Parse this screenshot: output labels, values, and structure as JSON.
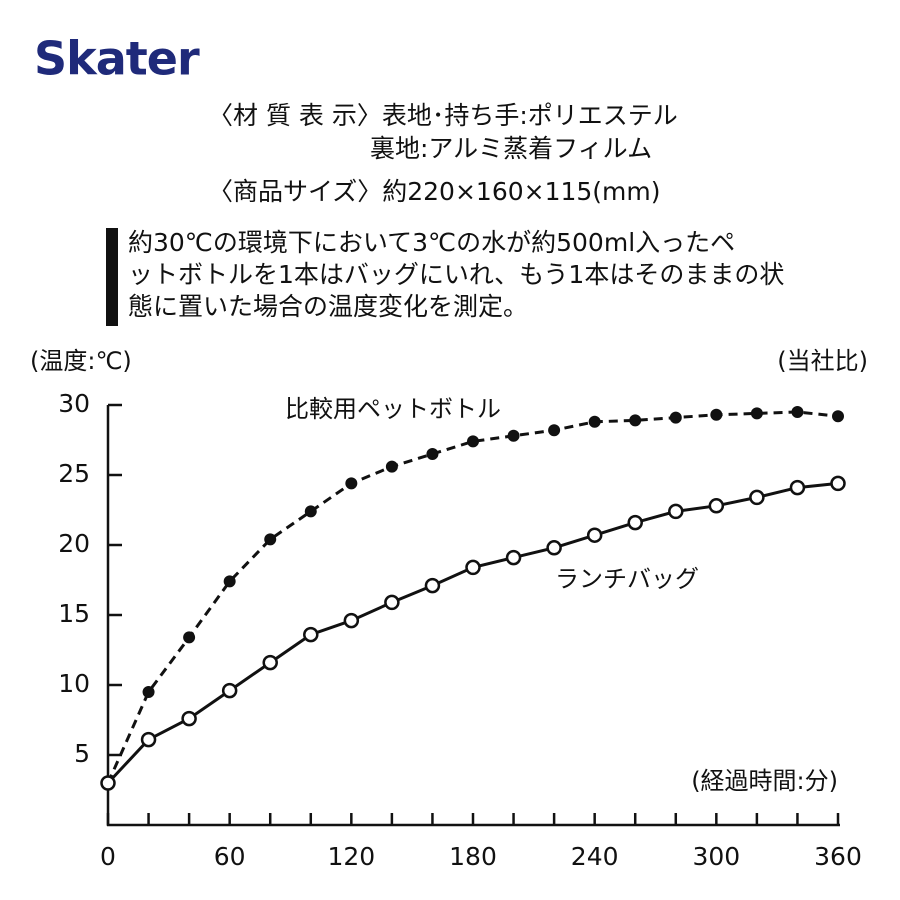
{
  "brand": "Skater",
  "spec": [
    "〈材 質 表 示〉表地･持ち手:ポリエステル",
    "裏地:アルミ蒸着フィルム",
    "〈商品サイズ〉約220×160×115(mm)"
  ],
  "note": [
    "約30℃の環境下において3℃の水が約500ml入ったペ",
    "ットボトルを1本はバッグにいれ、もう1本はそのままの状",
    "態に置いた場合の温度変化を測定。"
  ],
  "chart_data": {
    "type": "line",
    "y_label": "(温度:℃)",
    "x_label": "(経過時間:分)",
    "annotation": "(当社比)",
    "x": [
      0,
      20,
      40,
      60,
      80,
      100,
      120,
      140,
      160,
      180,
      200,
      220,
      240,
      260,
      280,
      300,
      320,
      340,
      360
    ],
    "series": [
      {
        "name": "比較用ペットボトル",
        "color": "#111111",
        "values": [
          3.0,
          9.5,
          13.4,
          17.4,
          20.4,
          22.4,
          24.4,
          25.6,
          26.5,
          27.4,
          27.8,
          28.2,
          28.8,
          28.9,
          29.1,
          29.3,
          29.4,
          29.5,
          29.2
        ]
      },
      {
        "name": "ランチバッグ",
        "color": "#111111",
        "values": [
          3.0,
          6.1,
          7.6,
          9.6,
          11.6,
          13.6,
          14.6,
          15.9,
          17.1,
          18.4,
          19.1,
          19.8,
          20.7,
          21.6,
          22.4,
          22.8,
          23.4,
          24.1,
          24.4
        ]
      }
    ],
    "xlim": [
      0,
      360
    ],
    "xticks": [
      0,
      60,
      120,
      180,
      240,
      300,
      360
    ],
    "ylim": [
      0,
      30
    ],
    "yticks": [
      5,
      10,
      15,
      20,
      25,
      30
    ]
  }
}
